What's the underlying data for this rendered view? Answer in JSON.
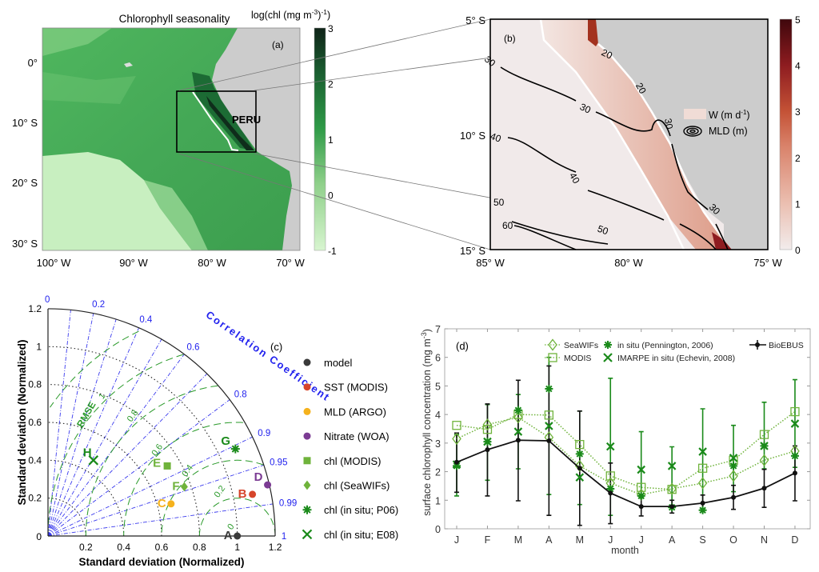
{
  "chart_data": [
    {
      "panel": "(a)",
      "type": "heatmap",
      "title": "Chlorophyll seasonality",
      "colorbar_label": "log(chl (mg m",
      "colorbar_label_sup": "-3",
      "colorbar_label_end": ")",
      "colorbar_label_sup2": "-1",
      "colorbar_ticks": [
        "3",
        "2",
        "1",
        "0",
        "-1"
      ],
      "colorbar_range": [
        -1,
        3
      ],
      "colormap": [
        "#d8f5d0",
        "#1f8a3c",
        "#0f2a18"
      ],
      "y_ticks": [
        "0°",
        "10° S",
        "20° S",
        "30° S"
      ],
      "x_ticks": [
        "100° W",
        "90° W",
        "80° W",
        "70° W"
      ],
      "annotation": "PERU",
      "land_color": "#cccccc"
    },
    {
      "panel": "(b)",
      "type": "heatmap",
      "colorbar_ticks": [
        "5",
        "4",
        "3",
        "2",
        "1",
        "0"
      ],
      "colorbar_range": [
        0,
        5
      ],
      "colormap": [
        "#f2ecec",
        "#d9826a",
        "#4d0a0f"
      ],
      "y_ticks": [
        "5° S",
        "10° S",
        "15° S"
      ],
      "x_ticks": [
        "85° W",
        "80° W",
        "75° W"
      ],
      "legend": [
        "W (m d-1)",
        "MLD (m)"
      ],
      "contour_labels": [
        "20",
        "20",
        "30",
        "30",
        "30",
        "30",
        "40",
        "40",
        "50",
        "50",
        "60",
        "30"
      ]
    },
    {
      "panel": "(c)",
      "type": "scatter",
      "subtype": "taylor",
      "xlabel": "Standard deviation (Normalized)",
      "ylabel": "Standard deviation (Normalized)",
      "axis_ticks": [
        "0",
        "0.2",
        "0.4",
        "0.6",
        "0.8",
        "1",
        "1.2"
      ],
      "correlation_title": "Correlation Coefficient",
      "correlation_ticks": [
        "0",
        "0.2",
        "0.4",
        "0.6",
        "0.8",
        "0.9",
        "0.95",
        "0.99",
        "1"
      ],
      "rmse_label": "RMSE",
      "rmse_ticks": [
        "0",
        "0.2",
        "0.4",
        "0.6",
        "0.8",
        "1"
      ],
      "range": [
        0,
        1.2
      ],
      "points": [
        {
          "label": "A",
          "name": "model",
          "x": 1.0,
          "y": 0.0,
          "color": "#3a3a3a",
          "marker": "circle"
        },
        {
          "label": "B",
          "name": "SST (MODIS)",
          "x": 1.08,
          "y": 0.22,
          "color": "#d6452b",
          "marker": "circle"
        },
        {
          "label": "C",
          "name": "MLD (ARGO)",
          "x": 0.65,
          "y": 0.17,
          "color": "#f5b21d",
          "marker": "circle"
        },
        {
          "label": "D",
          "name": "Nitrate (WOA)",
          "x": 1.16,
          "y": 0.27,
          "color": "#7b3b93",
          "marker": "circle"
        },
        {
          "label": "E",
          "name": "chl (MODIS)",
          "x": 0.63,
          "y": 0.37,
          "color": "#6fb33b",
          "marker": "square"
        },
        {
          "label": "F",
          "name": "chl (SeaWIFs)",
          "x": 0.72,
          "y": 0.26,
          "color": "#6fb33b",
          "marker": "diamond"
        },
        {
          "label": "G",
          "name": "chl (in situ; P06)",
          "x": 0.99,
          "y": 0.46,
          "color": "#1a8a1a",
          "marker": "asterisk"
        },
        {
          "label": "H",
          "name": "chl (in situ; E08)",
          "x": 0.24,
          "y": 0.4,
          "color": "#1a8a1a",
          "marker": "x"
        }
      ]
    },
    {
      "panel": "(d)",
      "type": "line",
      "xlabel": "month",
      "ylabel": "surface chlorophyll concentration (mg m",
      "ylabel_sup": "-3",
      "ylabel_end": ")",
      "categories": [
        "J",
        "F",
        "M",
        "A",
        "M",
        "J",
        "J",
        "A",
        "S",
        "O",
        "N",
        "D"
      ],
      "ylim": [
        0,
        7
      ],
      "y_ticks": [
        "0",
        "1",
        "2",
        "3",
        "4",
        "5",
        "6",
        "7"
      ],
      "legend_position": "top",
      "series": [
        {
          "name": "SeaWIFs",
          "color": "#6fb33b",
          "marker": "diamond",
          "style": "dotted",
          "values": [
            3.15,
            3.65,
            3.9,
            3.2,
            2.2,
            1.6,
            1.2,
            1.4,
            1.6,
            1.85,
            2.4,
            2.72
          ]
        },
        {
          "name": "MODIS",
          "color": "#6fb33b",
          "marker": "square",
          "style": "dotted",
          "values": [
            3.62,
            3.48,
            4.0,
            3.98,
            2.95,
            1.85,
            1.45,
            1.38,
            2.12,
            2.4,
            3.3,
            4.1
          ]
        },
        {
          "name": "in situ (Pennington, 2006)",
          "color": "#1a8a1a",
          "marker": "asterisk",
          "style": "none",
          "values": [
            2.2,
            3.05,
            4.15,
            4.9,
            2.62,
            1.4,
            1.15,
            0.75,
            0.65,
            2.2,
            2.9,
            2.55
          ],
          "err_low": [
            1.15,
            1.7,
            2.1,
            1.2,
            0.85,
            0.47,
            1.1,
            0.8,
            0.7,
            1.3,
            2.1,
            2.15
          ],
          "err_high": [
            3.3,
            4.35,
            4.7,
            6.0,
            4.12,
            5.27,
            3.4,
            2.87,
            4.2,
            3.62,
            4.43,
            5.22
          ]
        },
        {
          "name": "IMARPE in situ (Echevin, 2008)",
          "color": "#1a8a1a",
          "marker": "x",
          "style": "none",
          "values": [
            2.25,
            3.05,
            3.4,
            3.6,
            1.8,
            2.88,
            2.07,
            2.2,
            2.7,
            2.48,
            2.9,
            3.68
          ]
        },
        {
          "name": "BioEBUS",
          "color": "#111111",
          "marker": "dot",
          "style": "solid",
          "values": [
            2.33,
            2.77,
            3.1,
            3.08,
            2.12,
            1.25,
            0.78,
            0.78,
            0.9,
            1.1,
            1.42,
            1.95
          ],
          "err_low": [
            1.28,
            1.15,
            0.98,
            0.47,
            0.12,
            0.18,
            0.45,
            0.55,
            0.7,
            0.68,
            0.75,
            0.98
          ],
          "err_high": [
            3.35,
            4.37,
            5.2,
            5.7,
            4.12,
            2.3,
            1.12,
            1.0,
            1.18,
            1.52,
            2.08,
            2.9
          ]
        }
      ]
    }
  ]
}
